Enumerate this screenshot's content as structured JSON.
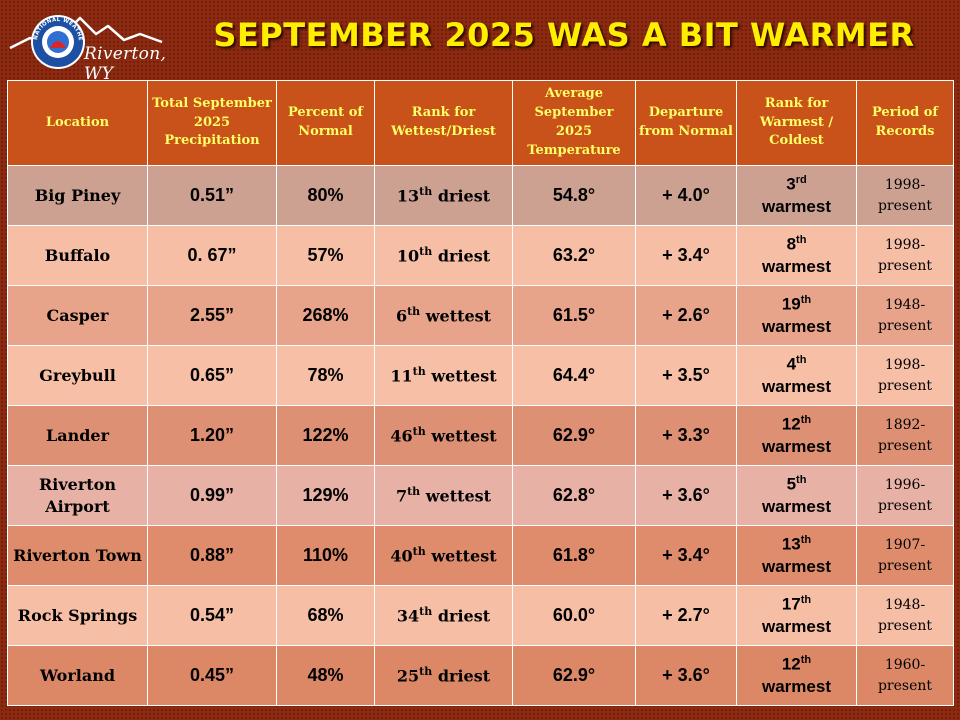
{
  "header": {
    "logo_text": "Riverton, WY",
    "logo_seal_text": "NATIONAL WEATHER SERVICE",
    "title": "SEPTEMBER 2025 WAS A BIT WARMER"
  },
  "table": {
    "columns": [
      "Location",
      "Total September 2025 Precipitation",
      "Percent of Normal",
      "Rank for Wettest/Driest",
      "Average September 2025 Temperature",
      "Departure from Normal",
      "Rank for Warmest / Coldest",
      "Period of Records"
    ],
    "rows": [
      {
        "location": "Big Piney",
        "precip": "0.51”",
        "percent": "80%",
        "rank_num": "13",
        "rank_suffix": "th",
        "rank_word": "driest",
        "temp": "54.8°",
        "departure": "+ 4.0°",
        "warm_num": "3",
        "warm_suffix": "rd",
        "warm_word": "warmest",
        "period_start": "1998-",
        "period_end": "present"
      },
      {
        "location": "Buffalo",
        "precip": "0. 67”",
        "percent": "57%",
        "rank_num": "10",
        "rank_suffix": "th",
        "rank_word": "driest",
        "temp": "63.2°",
        "departure": "+ 3.4°",
        "warm_num": "8",
        "warm_suffix": "th",
        "warm_word": "warmest",
        "period_start": "1998-",
        "period_end": "present"
      },
      {
        "location": "Casper",
        "precip": "2.55”",
        "percent": "268%",
        "rank_num": "6",
        "rank_suffix": "th",
        "rank_word": "wettest",
        "temp": "61.5°",
        "departure": "+ 2.6°",
        "warm_num": "19",
        "warm_suffix": "th",
        "warm_word": "warmest",
        "period_start": "1948-",
        "period_end": "present"
      },
      {
        "location": "Greybull",
        "precip": "0.65”",
        "percent": "78%",
        "rank_num": "11",
        "rank_suffix": "th",
        "rank_word": "wettest",
        "temp": "64.4°",
        "departure": "+ 3.5°",
        "warm_num": "4",
        "warm_suffix": "th",
        "warm_word": "warmest",
        "period_start": "1998-",
        "period_end": "present"
      },
      {
        "location": "Lander",
        "precip": "1.20”",
        "percent": "122%",
        "rank_num": "46",
        "rank_suffix": "th",
        "rank_word": "wettest",
        "temp": "62.9°",
        "departure": "+ 3.3°",
        "warm_num": "12",
        "warm_suffix": "th",
        "warm_word": "warmest",
        "period_start": "1892-",
        "period_end": "present"
      },
      {
        "location": "Riverton Airport",
        "precip": "0.99”",
        "percent": "129%",
        "rank_num": "7",
        "rank_suffix": "th",
        "rank_word": "wettest",
        "temp": "62.8°",
        "departure": "+ 3.6°",
        "warm_num": "5",
        "warm_suffix": "th",
        "warm_word": "warmest",
        "period_start": "1996-",
        "period_end": "present"
      },
      {
        "location": "Riverton Town",
        "precip": "0.88”",
        "percent": "110%",
        "rank_num": "40",
        "rank_suffix": "th",
        "rank_word": "wettest",
        "temp": "61.8°",
        "departure": "+ 3.4°",
        "warm_num": "13",
        "warm_suffix": "th",
        "warm_word": "warmest",
        "period_start": "1907-",
        "period_end": "present"
      },
      {
        "location": "Rock Springs",
        "precip": "0.54”",
        "percent": "68%",
        "rank_num": "34",
        "rank_suffix": "th",
        "rank_word": "driest",
        "temp": "60.0°",
        "departure": "+ 2.7°",
        "warm_num": "17",
        "warm_suffix": "th",
        "warm_word": "warmest",
        "period_start": "1948-",
        "period_end": "present"
      },
      {
        "location": "Worland",
        "precip": "0.45”",
        "percent": "48%",
        "rank_num": "25",
        "rank_suffix": "th",
        "rank_word": "driest",
        "temp": "62.9°",
        "departure": "+ 3.6°",
        "warm_num": "12",
        "warm_suffix": "th",
        "warm_word": "warmest",
        "period_start": "1960-",
        "period_end": "present"
      }
    ]
  },
  "colors": {
    "background": "#8e2a10",
    "header_fill": "#c9511a",
    "header_text": "#ffff66",
    "title_text": "#ffee00"
  }
}
